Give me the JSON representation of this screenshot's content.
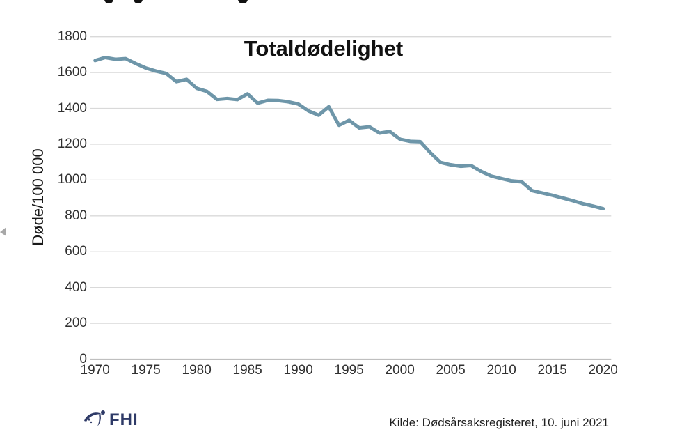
{
  "chart_data": {
    "type": "line",
    "title": "Totaldødelighet",
    "ylabel": "Døde/100 000",
    "xlabel": "",
    "ylim": [
      0,
      1800
    ],
    "y_ticks": [
      0,
      200,
      400,
      600,
      800,
      1000,
      1200,
      1400,
      1600,
      1800
    ],
    "x_ticks": [
      1970,
      1975,
      1980,
      1985,
      1990,
      1995,
      2000,
      2005,
      2010,
      2015,
      2020
    ],
    "grid": "horizontal",
    "legend": "none",
    "x": [
      1970,
      1971,
      1972,
      1973,
      1974,
      1975,
      1976,
      1977,
      1978,
      1979,
      1980,
      1981,
      1982,
      1983,
      1984,
      1985,
      1986,
      1987,
      1988,
      1989,
      1990,
      1991,
      1992,
      1993,
      1994,
      1995,
      1996,
      1997,
      1998,
      1999,
      2000,
      2001,
      2002,
      2003,
      2004,
      2005,
      2006,
      2007,
      2008,
      2009,
      2010,
      2011,
      2012,
      2013,
      2014,
      2015,
      2016,
      2017,
      2018,
      2019,
      2020
    ],
    "series": [
      {
        "name": "Totaldødelighet",
        "values": [
          1667,
          1684,
          1674,
          1678,
          1650,
          1625,
          1608,
          1595,
          1549,
          1562,
          1512,
          1495,
          1450,
          1455,
          1449,
          1481,
          1429,
          1445,
          1444,
          1437,
          1424,
          1386,
          1362,
          1409,
          1306,
          1333,
          1291,
          1297,
          1262,
          1271,
          1228,
          1216,
          1214,
          1152,
          1098,
          1085,
          1077,
          1081,
          1048,
          1022,
          1008,
          995,
          990,
          941,
          928,
          915,
          900,
          885,
          868,
          855,
          840
        ]
      }
    ]
  },
  "footer": {
    "logo_text": "FHI",
    "source": "Kilde: Dødsårsaksregisteret, 10. juni 2021"
  },
  "colors": {
    "line": "#6E96A9",
    "grid": "#D9D9D9",
    "axis_line": "#BFBFBF",
    "logo": "#2E3A67"
  }
}
